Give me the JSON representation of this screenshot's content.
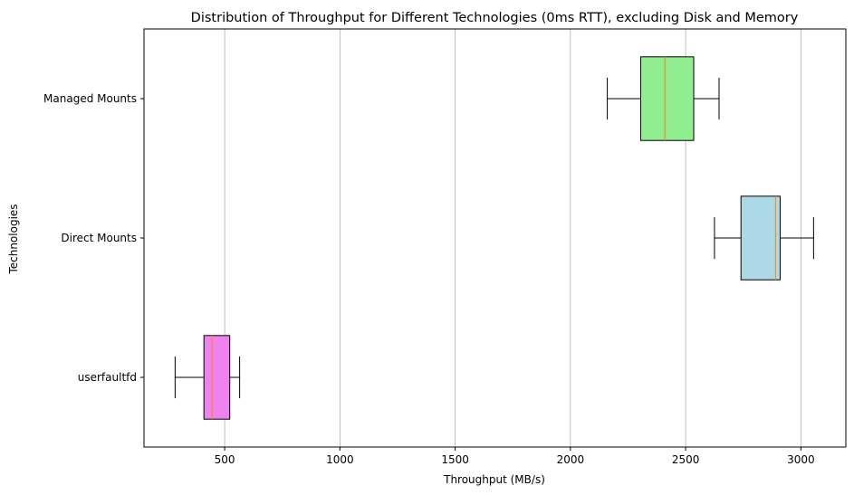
{
  "chart_data": {
    "type": "boxplot",
    "orientation": "horizontal",
    "title": "Distribution of Throughput for Different Technologies (0ms RTT), excluding Disk and Memory",
    "xlabel": "Throughput (MB/s)",
    "ylabel": "Technologies",
    "xlim": [
      150,
      3195
    ],
    "x_ticks": [
      500,
      1000,
      1500,
      2000,
      2500,
      3000
    ],
    "x_tick_labels": [
      "500",
      "1000",
      "1500",
      "2000",
      "2500",
      "3000"
    ],
    "grid": "x-major",
    "median_color": "#ff7f0e",
    "categories": [
      "userfaultfd",
      "Direct Mounts",
      "Managed Mounts"
    ],
    "boxes": [
      {
        "label": "userfaultfd",
        "whisker_low": 285,
        "q1": 410,
        "median": 445,
        "q3": 522,
        "whisker_high": 565,
        "color": "#ee82ee"
      },
      {
        "label": "Direct Mounts",
        "whisker_low": 2625,
        "q1": 2740,
        "median": 2890,
        "q3": 2910,
        "whisker_high": 3055,
        "color": "#add8e6"
      },
      {
        "label": "Managed Mounts",
        "whisker_low": 2160,
        "q1": 2305,
        "median": 2410,
        "q3": 2535,
        "whisker_high": 2645,
        "color": "#90ee90"
      }
    ]
  }
}
